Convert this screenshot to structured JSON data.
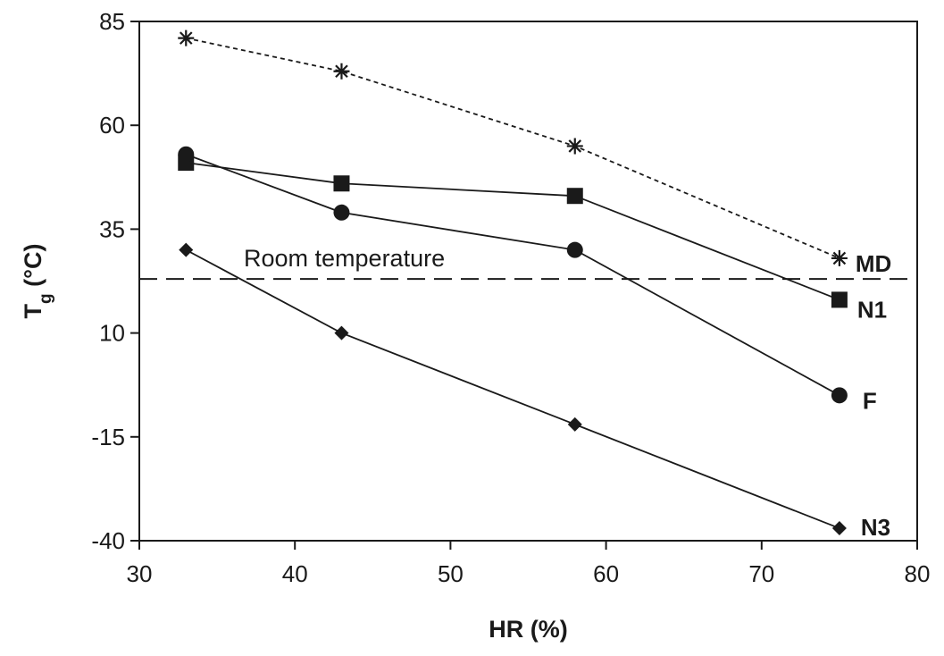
{
  "chart_data": {
    "type": "line",
    "xlabel": "HR (%)",
    "ylabel": {
      "main": "T",
      "sub": "g",
      "rest": " (°C)"
    },
    "xlim": [
      30,
      80
    ],
    "ylim": [
      -40,
      85
    ],
    "xticks": [
      30,
      40,
      50,
      60,
      70,
      80
    ],
    "yticks": [
      85,
      60,
      35,
      10,
      -15,
      -40
    ],
    "grid": false,
    "legend": "none",
    "series": [
      {
        "name": "MD",
        "marker": "asterisk",
        "line": "dotted",
        "x": [
          33,
          43,
          58,
          75
        ],
        "y": [
          81,
          73,
          55,
          28
        ]
      },
      {
        "name": "N1",
        "marker": "square",
        "line": "solid",
        "x": [
          33,
          43,
          58,
          75
        ],
        "y": [
          51,
          46,
          43,
          18
        ]
      },
      {
        "name": "F",
        "marker": "circle",
        "line": "solid",
        "x": [
          33,
          43,
          58,
          75
        ],
        "y": [
          53,
          39,
          30,
          -5
        ]
      },
      {
        "name": "N3",
        "marker": "diamond",
        "line": "solid",
        "x": [
          33,
          43,
          58,
          75
        ],
        "y": [
          30,
          10,
          -12,
          -37
        ]
      }
    ],
    "annotations": [
      {
        "text": "Room temperature",
        "type": "hline",
        "y": 23,
        "line": "dashed"
      }
    ]
  }
}
